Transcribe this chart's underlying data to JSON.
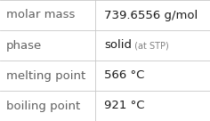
{
  "rows": [
    {
      "label": "molar mass",
      "value": "739.6556 g/mol",
      "value2": null,
      "value2_small": null
    },
    {
      "label": "phase",
      "value": "solid",
      "value2": " (at STP)",
      "value2_small": true
    },
    {
      "label": "melting point",
      "value": "566 °C",
      "value2": null,
      "value2_small": null
    },
    {
      "label": "boiling point",
      "value": "921 °C",
      "value2": null,
      "value2_small": null
    }
  ],
  "background_color": "#ffffff",
  "border_color": "#c8c8c8",
  "label_color": "#606060",
  "value_color": "#1a1a1a",
  "value2_color": "#808080",
  "label_fontsize": 9.5,
  "value_fontsize": 9.5,
  "value2_fontsize": 7.0,
  "col_split": 0.455,
  "figwidth": 2.36,
  "figheight": 1.36,
  "dpi": 100
}
